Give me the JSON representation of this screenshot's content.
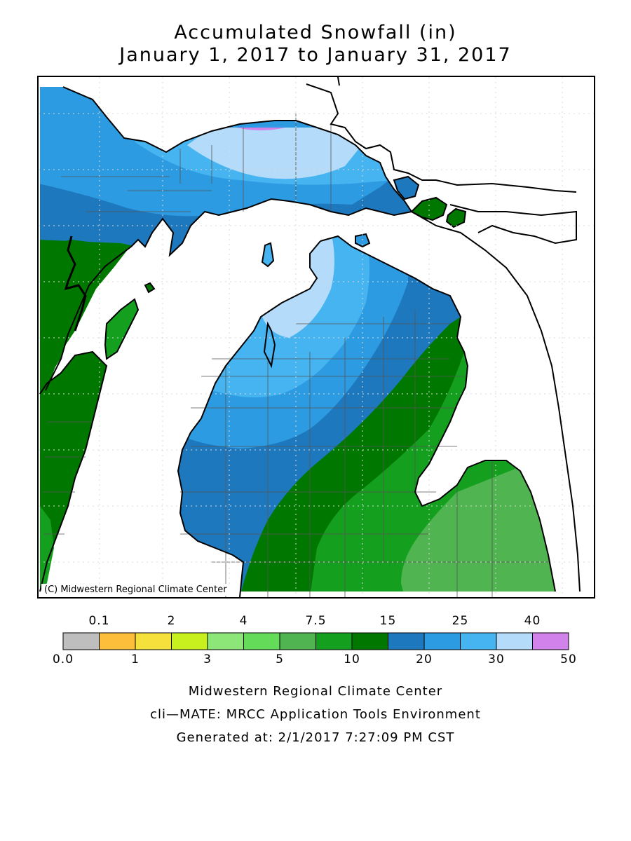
{
  "title": {
    "line1": "Accumulated Snowfall (in)",
    "line2": "January 1, 2017 to January 31, 2017"
  },
  "map": {
    "region": "Michigan",
    "copyright": "(C) Midwestern Regional Climate Center"
  },
  "legend": {
    "top_labels": [
      "0.1",
      "2",
      "4",
      "7.5",
      "15",
      "25",
      "40"
    ],
    "bottom_labels": [
      "0.0",
      "1",
      "3",
      "5",
      "10",
      "20",
      "30",
      "50"
    ],
    "colors": [
      "#bebebe",
      "#fdbe3c",
      "#f6e03c",
      "#c8f01e",
      "#8ce678",
      "#64dc5a",
      "#50b450",
      "#14a01e",
      "#007800",
      "#1e78be",
      "#2d9be1",
      "#46b4f0",
      "#b4dcfa",
      "#d282eb"
    ]
  },
  "footer": {
    "line1": "Midwestern Regional Climate Center",
    "line2": "cli—MATE: MRCC Application Tools Environment",
    "line3": "Generated at: 2/1/2017 7:27:09 PM CST"
  }
}
